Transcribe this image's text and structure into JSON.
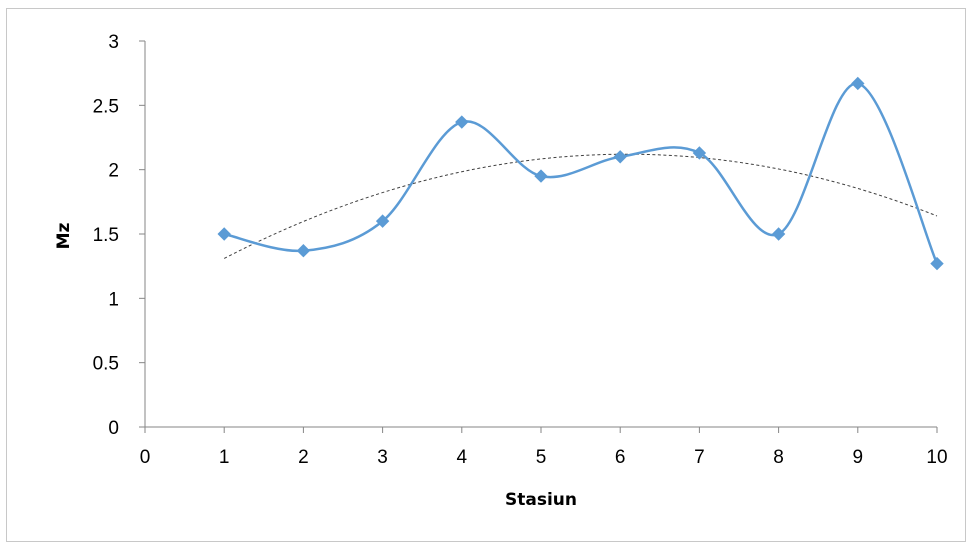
{
  "chart_data": {
    "type": "line",
    "title": "",
    "xlabel": "Stasiun",
    "ylabel": "Mz",
    "xlim": [
      0,
      10
    ],
    "ylim": [
      0,
      3
    ],
    "x_ticks": [
      0,
      1,
      2,
      3,
      4,
      5,
      6,
      7,
      8,
      9,
      10
    ],
    "y_ticks": [
      0,
      0.5,
      1,
      1.5,
      2,
      2.5,
      3
    ],
    "x_tick_labels": [
      "0",
      "1",
      "2",
      "3",
      "4",
      "5",
      "6",
      "7",
      "8",
      "9",
      "10"
    ],
    "y_tick_labels": [
      "0",
      "0.5",
      "1",
      "1.5",
      "2",
      "2.5",
      "3"
    ],
    "grid": false,
    "legend": "none",
    "series": [
      {
        "x": [
          1,
          2,
          3,
          4,
          5,
          6,
          7,
          8,
          9,
          10
        ],
        "values": [
          1.5,
          1.37,
          1.6,
          2.37,
          1.95,
          2.1,
          2.13,
          1.5,
          2.67,
          1.27
        ],
        "line_style": "smooth",
        "marker": "diamond",
        "color": "#5B9BD5"
      }
    ],
    "trendline": {
      "kind": "polynomial",
      "order": 2,
      "style": "dotted",
      "color": "#404040",
      "fitted_points": [
        {
          "x": 1,
          "y": 1.31
        },
        {
          "x": 6,
          "y": 2.12
        },
        {
          "x": 10,
          "y": 1.64
        }
      ]
    }
  }
}
